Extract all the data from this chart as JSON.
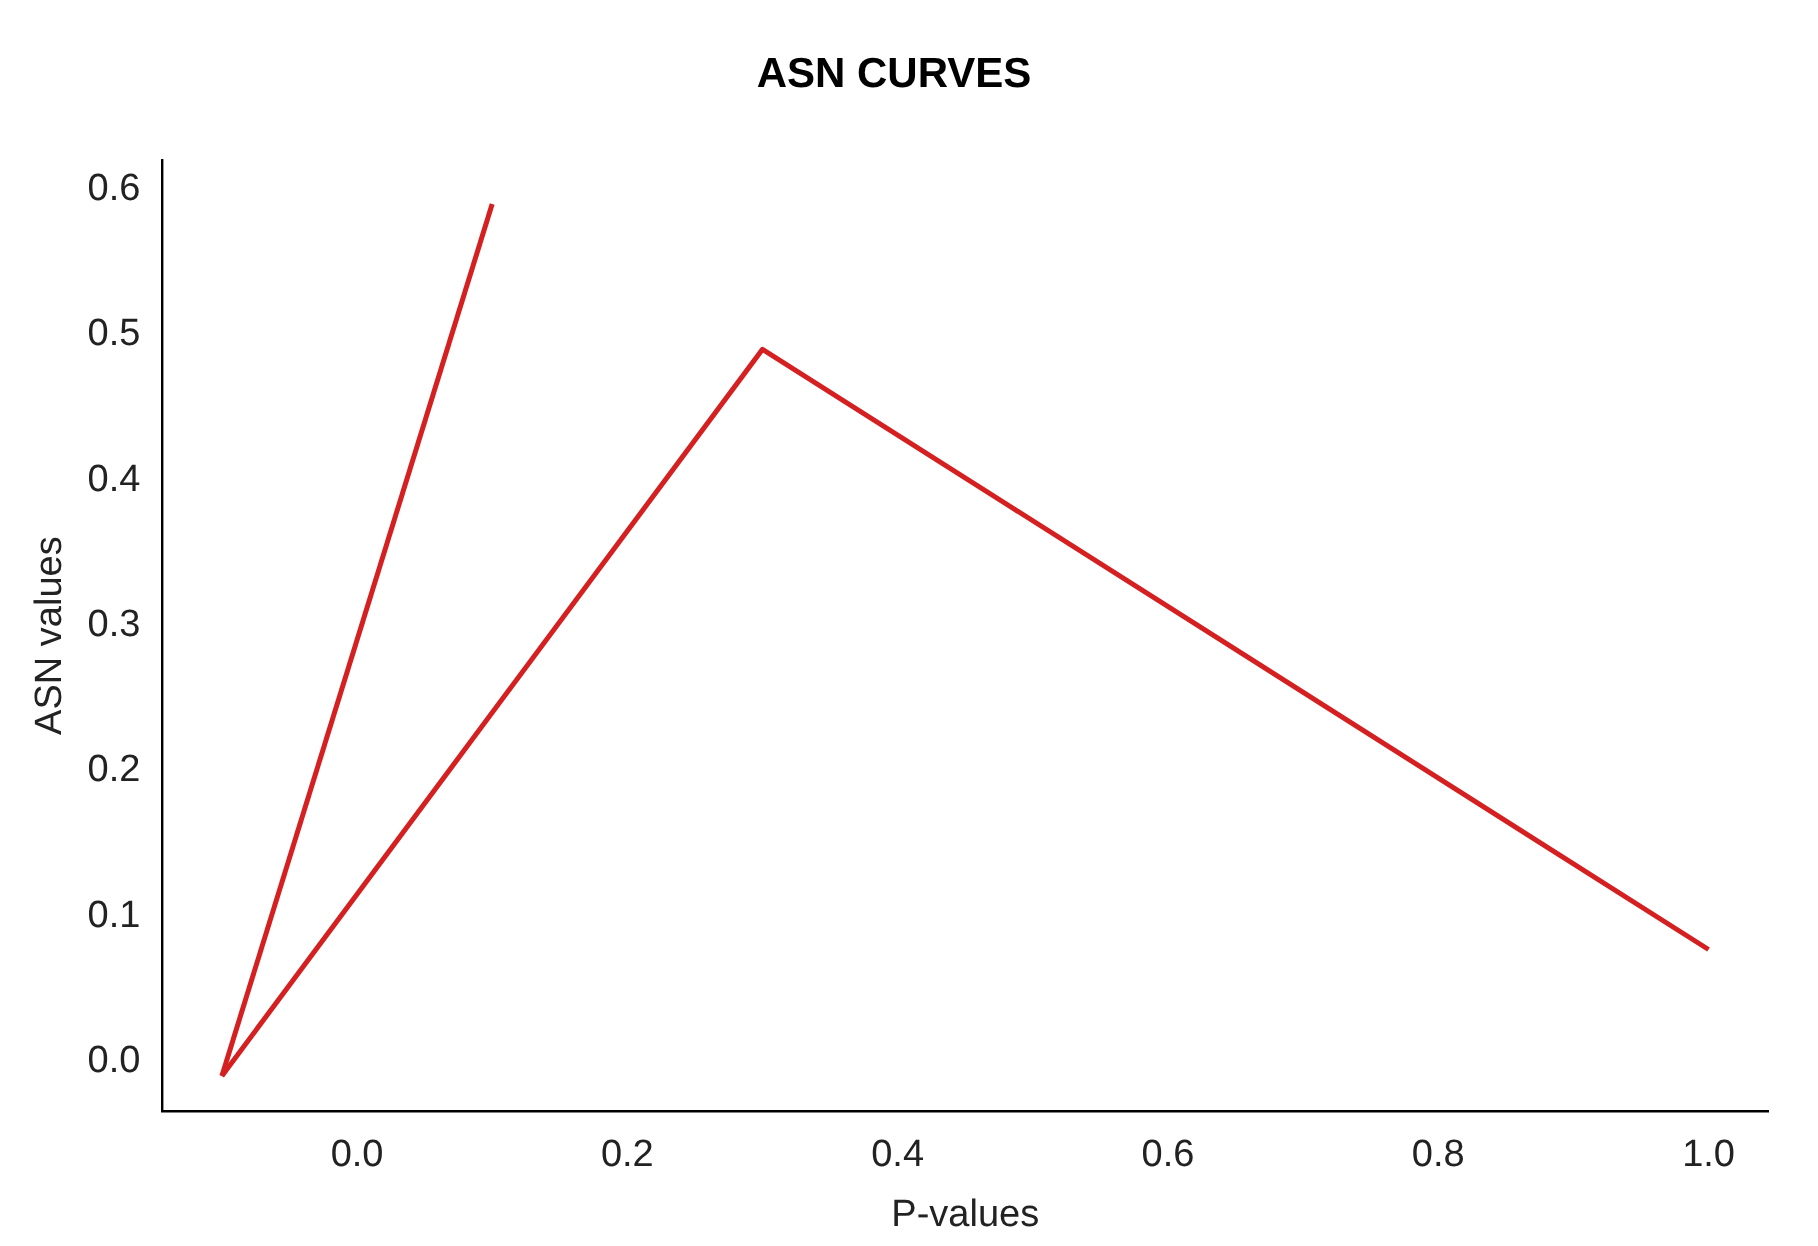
{
  "chart_data": {
    "type": "line",
    "title": "ASN CURVES",
    "xlabel": "P-values",
    "ylabel": "ASN values",
    "series": [
      {
        "color": "#d42020",
        "x": [
          -0.1,
          0.1
        ],
        "values": [
          -0.01,
          0.59
        ]
      },
      {
        "color": "#d42020",
        "x": [
          -0.1,
          0.3,
          1.0
        ],
        "values": [
          -0.01,
          0.49,
          0.077
        ]
      }
    ],
    "xlim": [
      -0.144,
      1.044
    ],
    "xticks": [
      {
        "value": 0,
        "label": "0.0"
      },
      0.2,
      0.4,
      0.6,
      0.8,
      {
        "value": 1,
        "label": "1.0"
      }
    ],
    "ylim": [
      -0.034,
      0.62
    ],
    "yticks": [
      {
        "value": 0,
        "label": "0.0"
      },
      0.1,
      0.2,
      0.3,
      0.4,
      0.5,
      0.6
    ],
    "grid": false,
    "legend": false,
    "marker": "none",
    "line_style": "solid"
  }
}
